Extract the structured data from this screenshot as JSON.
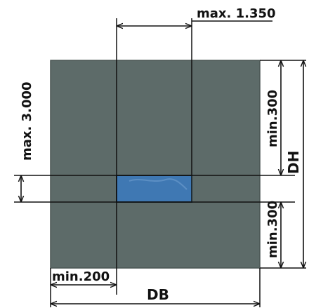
{
  "diagram": {
    "wall_color": "#5d6b69",
    "wall_edge_color": "#4a5553",
    "opening_color": "#3f78b3",
    "opening_highlight": "#6f9fcf",
    "line_color": "#111111",
    "labels": {
      "max_width": "max. 1.350",
      "max_height": "max. 3.000",
      "min_top": "min.300",
      "min_bottom": "min.300",
      "min_side": "min.200",
      "db": "DB",
      "dh": "DH"
    }
  }
}
